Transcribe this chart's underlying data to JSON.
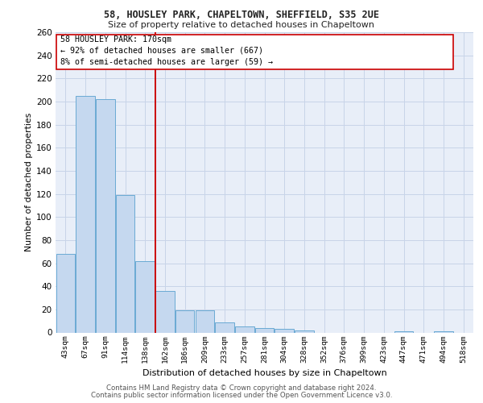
{
  "title1": "58, HOUSLEY PARK, CHAPELTOWN, SHEFFIELD, S35 2UE",
  "title2": "Size of property relative to detached houses in Chapeltown",
  "xlabel": "Distribution of detached houses by size in Chapeltown",
  "ylabel": "Number of detached properties",
  "categories": [
    "43sqm",
    "67sqm",
    "91sqm",
    "114sqm",
    "138sqm",
    "162sqm",
    "186sqm",
    "209sqm",
    "233sqm",
    "257sqm",
    "281sqm",
    "304sqm",
    "328sqm",
    "352sqm",
    "376sqm",
    "399sqm",
    "423sqm",
    "447sqm",
    "471sqm",
    "494sqm",
    "518sqm"
  ],
  "values": [
    68,
    205,
    202,
    119,
    62,
    36,
    19,
    19,
    9,
    5,
    4,
    3,
    2,
    0,
    0,
    0,
    0,
    1,
    0,
    1,
    0
  ],
  "bar_color": "#c5d8ef",
  "bar_edge_color": "#6aaad4",
  "vline_x": 4.5,
  "vline_color": "#cc0000",
  "annotation_line1": "58 HOUSLEY PARK: 170sqm",
  "annotation_line2": "← 92% of detached houses are smaller (667)",
  "annotation_line3": "8% of semi-detached houses are larger (59) →",
  "annotation_box_color": "#ffffff",
  "annotation_box_edge": "#cc0000",
  "ylim": [
    0,
    260
  ],
  "yticks": [
    0,
    20,
    40,
    60,
    80,
    100,
    120,
    140,
    160,
    180,
    200,
    220,
    240,
    260
  ],
  "grid_color": "#c8d4e8",
  "bg_color": "#e8eef8",
  "footer1": "Contains HM Land Registry data © Crown copyright and database right 2024.",
  "footer2": "Contains public sector information licensed under the Open Government Licence v3.0."
}
